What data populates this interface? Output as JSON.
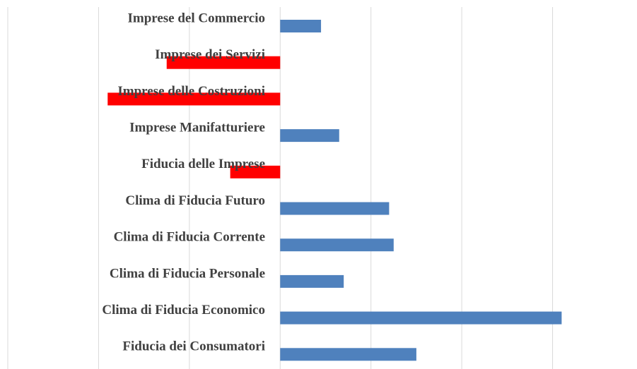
{
  "chart_data": {
    "type": "hbar",
    "categories": [
      "Imprese del Commercio",
      "Imprese dei Servizi",
      "Imprese delle Costruzioni",
      "Imprese Manifatturiere",
      "Fiducia delle Imprese",
      "Clima di Fiducia Futuro",
      "Clima di Fiducia Corrente",
      "Clima di Fiducia Personale",
      "Clima di Fiducia Economico",
      "Fiducia dei Consumatori"
    ],
    "values": [
      0.45,
      -1.25,
      -1.9,
      0.65,
      -0.55,
      1.2,
      1.25,
      0.7,
      3.1,
      1.5
    ],
    "color": "#4f81bd",
    "negative_color": "#ff0000",
    "xlim": [
      -3,
      3.93
    ],
    "xticks": [
      -3,
      -2,
      -1,
      0,
      1,
      2,
      3
    ],
    "grid": true
  }
}
